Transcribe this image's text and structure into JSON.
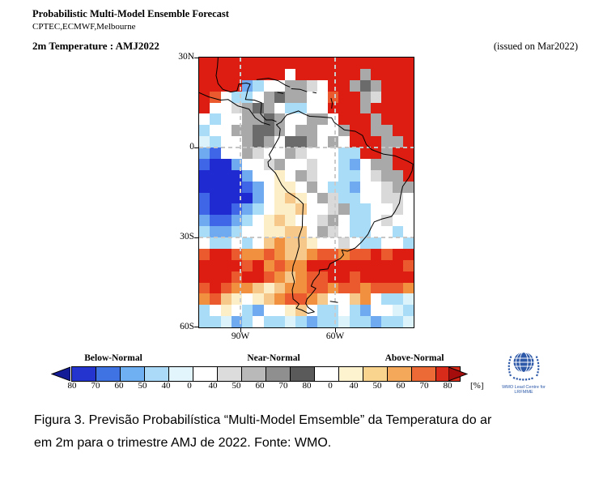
{
  "header": {
    "title": "Probabilistic Multi-Model Ensemble Forecast",
    "models": "CPTEC,ECMWF,Melbourne",
    "variable_label": "2m Temperature : AMJ2022",
    "issued_label": "(issued on Mar2022)"
  },
  "map": {
    "lat_ticks": [
      "30N",
      "0",
      "30S",
      "60S"
    ],
    "lon_ticks": [
      "90W",
      "60W"
    ]
  },
  "colorbar": {
    "below_label": "Below-Normal",
    "near_label": "Near-Normal",
    "above_label": "Above-Normal",
    "unit_label": "[%]",
    "tick_labels": [
      "80",
      "70",
      "60",
      "50",
      "40",
      "0",
      "40",
      "50",
      "60",
      "70",
      "80",
      "0",
      "40",
      "50",
      "60",
      "70",
      "80"
    ],
    "cell_colors": [
      "#2334cf",
      "#3f72e3",
      "#6fb0f3",
      "#abdaf8",
      "#e2f5fc",
      "#ffffff",
      "#dcdcdc",
      "#b9b9b9",
      "#8f8f8f",
      "#5a5a5a",
      "#ffffff",
      "#fdf3cf",
      "#f8d48e",
      "#f3a85a",
      "#ec6a35",
      "#d92b1a"
    ],
    "left_arrow_color": "#131c96",
    "right_arrow_color": "#a50d0d"
  },
  "logo": {
    "line1": "WMO Lead Centre for",
    "line2": "LRFMME",
    "blue": "#2d59a8"
  },
  "caption": {
    "line1": "Figura 3. Previsão Probabilística “Multi-Model Emsemble” da Temperatura do ar",
    "line2": "em 2m para o trimestre AMJ de 2022. Fonte: WMO."
  },
  "chart_data": {
    "type": "heatmap",
    "title": "Probabilistic Multi-Model Ensemble Forecast",
    "variable": "2m Temperature",
    "season": "AMJ2022",
    "issued": "Mar2022",
    "categories": [
      "Below-Normal",
      "Near-Normal",
      "Above-Normal"
    ],
    "probability_ticks_percent": [
      80,
      70,
      60,
      50,
      40,
      0,
      40,
      50,
      60,
      70,
      80,
      0,
      40,
      50,
      60,
      70,
      80
    ],
    "lat_ticks": [
      "30N",
      "0",
      "30S",
      "60S"
    ],
    "lon_ticks": [
      "90W",
      "60W"
    ],
    "grid": {
      "palette": {
        "B": "#1f2bd0",
        "b": "#3f66e6",
        "c": "#6fa9f0",
        "C": "#a9dcf6",
        "E": "#ddf3fb",
        "W": "#ffffff",
        "g": "#d9d9d9",
        "G": "#a9a9a9",
        "D": "#6b6b6b",
        "y": "#fcefc8",
        "t": "#f6c98b",
        "o": "#f19140",
        "r": "#ea5a2e",
        "R": "#dd1c12"
      },
      "rows": [
        "RRRRRRRRRRRRRRRRRRRR",
        "RRRRRRRRWRRRRRRGRRRR",
        "RRRRcCWWGGgWRRGDGRRR",
        "RrWCCWGDGGWWrRRGgRRR",
        "RWWgGDGWCCWWRRRGRRRR",
        "WCWWGGDGWWGGWRRRGRRR",
        "CWWGGDDGWGGWWGRRGGRR",
        "ECWWGDGWDDGWGWRRRGGR",
        "cbWWGgWWGgWWWCCRRGRR",
        "bBBcWWgGWWgWWCcWGGRR",
        "BBBBcWWyWGgWWCCWgGGR",
        "BBBBbcWyyWGWCCcWWgGG",
        "bBBBBcWytyWGgCCWWggW",
        "bBBbcCWyytWWgGCCWWgW",
        "cbbcCWytyWWgGWCCWgWW",
        "CccCWWyyttWGgWCCWWCW",
        "WCCWCWtottyWWgWCCWWC",
        "rRRroorottorrorrRrRR",
        "RRRRrRorooRRRRRRRRRr",
        "RRRrRRrotorrRRrRRRRR",
        "rRrootytoorrorrorrro",
        "ortyWytorrotWWtoWCCE",
        "CWyWCcWWytWCCWCcWWEC",
        "CCEcCWCCECcCCECCcCCE"
      ]
    }
  }
}
